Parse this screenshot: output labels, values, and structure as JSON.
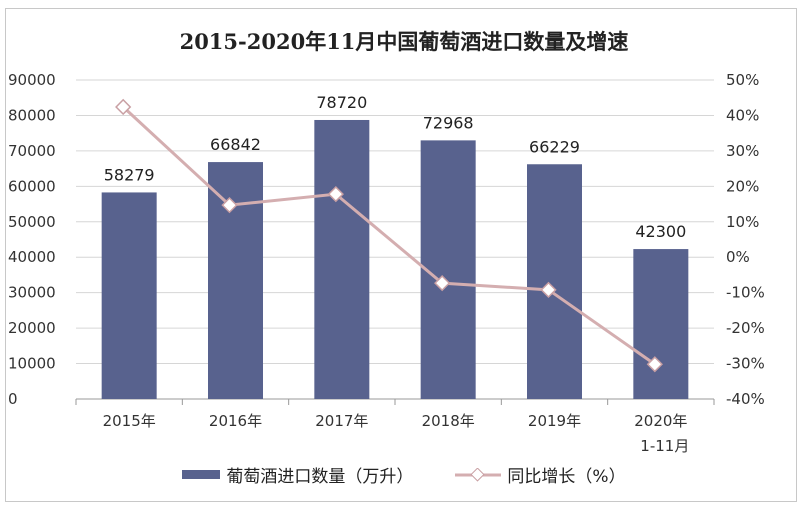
{
  "chart_data": {
    "type": "bar+line",
    "title": "2015-2020年11月中国葡萄酒进口数量及增速",
    "categories": [
      "2015年",
      "2016年",
      "2017年",
      "2018年",
      "2019年",
      "2020年"
    ],
    "category_sublabels": [
      "",
      "",
      "",
      "",
      "",
      "1-11月"
    ],
    "series": [
      {
        "name": "葡萄酒进口数量（万升）",
        "type": "bar",
        "axis": "left",
        "color": "#58628e",
        "values": [
          58279,
          66842,
          78720,
          72968,
          66229,
          42300
        ],
        "labels": [
          "58279",
          "66842",
          "78720",
          "72968",
          "66229",
          "42300"
        ]
      },
      {
        "name": "同比增长（%）",
        "type": "line",
        "axis": "right",
        "color": "#d4aeb0",
        "values": [
          42.4,
          14.7,
          17.8,
          -7.3,
          -9.2,
          -30.2
        ]
      }
    ],
    "left_axis": {
      "ylim": [
        0,
        90000
      ],
      "ticks": [
        "0",
        "10000",
        "20000",
        "30000",
        "40000",
        "50000",
        "60000",
        "70000",
        "80000",
        "90000"
      ]
    },
    "right_axis": {
      "ylim": [
        -40,
        50
      ],
      "ticks": [
        "-40%",
        "-30%",
        "-20%",
        "-10%",
        "0%",
        "10%",
        "20%",
        "30%",
        "40%",
        "50%"
      ]
    },
    "grid": true,
    "legend": "bottom"
  }
}
